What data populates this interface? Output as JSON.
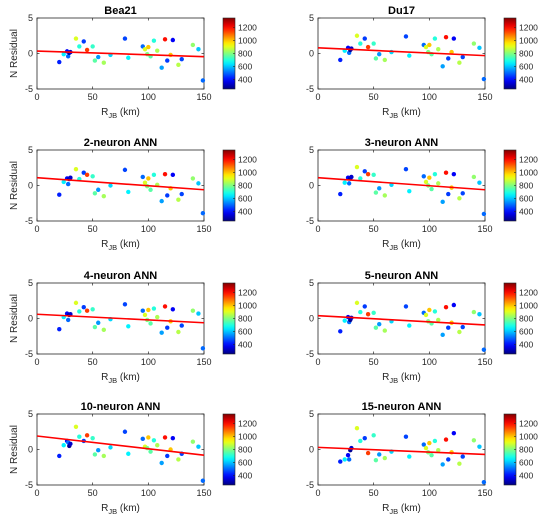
{
  "shared": {
    "xlim": [
      0,
      150
    ],
    "ylim": [
      -5,
      5
    ],
    "xticks": [
      0,
      50,
      100,
      150
    ],
    "yticks": [
      -5,
      0,
      5
    ],
    "xlabel_main": "R",
    "xlabel_sub": "JB",
    "xlabel_unit": "(km)",
    "ylabel": "N Residual",
    "colorbar_ticks": [
      400,
      600,
      800,
      1000,
      1200
    ],
    "colorbar_range": [
      250,
      1350
    ],
    "colormap": "jet",
    "trend_color": "#ff0000",
    "x": [
      20,
      24,
      27,
      28,
      29,
      30,
      35,
      38,
      42,
      45,
      50,
      52,
      55,
      60,
      66,
      79,
      82,
      95,
      97,
      99,
      100,
      102,
      105,
      108,
      112,
      115,
      117,
      120,
      122,
      127,
      130,
      140,
      145,
      149
    ],
    "vs30": [
      420,
      650,
      380,
      500,
      270,
      330,
      900,
      700,
      450,
      1150,
      720,
      760,
      550,
      840,
      620,
      460,
      650,
      500,
      900,
      800,
      1000,
      760,
      700,
      850,
      560,
      1200,
      450,
      1000,
      380,
      860,
      460,
      820,
      600,
      500
    ]
  },
  "chart_data": [
    {
      "type": "scatter",
      "title": "Bea21",
      "trend": [
        0.35,
        -0.45
      ],
      "y": [
        -1.2,
        -0.1,
        0.3,
        -0.4,
        0.1,
        0.2,
        2.1,
        1.0,
        1.7,
        0.5,
        1.0,
        -1.0,
        -0.5,
        -1.3,
        -0.2,
        2.1,
        -0.6,
        1.0,
        0.6,
        -0.1,
        0.9,
        -0.4,
        1.8,
        0.4,
        -2.0,
        2.0,
        -1.0,
        -0.2,
        1.9,
        -1.6,
        -0.8,
        1.2,
        0.6,
        -3.8
      ]
    },
    {
      "type": "scatter",
      "title": "Du17",
      "trend": [
        0.8,
        -0.3
      ],
      "y": [
        -0.9,
        0.4,
        0.8,
        0.1,
        0.5,
        0.7,
        2.5,
        1.4,
        2.1,
        0.9,
        1.4,
        -0.7,
        -0.1,
        -0.9,
        0.2,
        2.4,
        -0.3,
        1.2,
        0.9,
        0.2,
        1.2,
        -0.1,
        2.1,
        0.6,
        -1.8,
        2.3,
        -0.7,
        0.2,
        2.1,
        -1.3,
        -0.5,
        1.4,
        0.8,
        -3.6
      ]
    },
    {
      "type": "scatter",
      "title": "2-neuron ANN",
      "trend": [
        1.1,
        -0.6
      ],
      "y": [
        -1.3,
        0.5,
        1.0,
        0.2,
        0.9,
        1.1,
        2.3,
        0.9,
        1.8,
        1.5,
        1.3,
        -1.1,
        -0.6,
        -1.5,
        0.0,
        2.2,
        -0.9,
        1.2,
        0.4,
        -0.1,
        1.0,
        -0.6,
        1.5,
        0.1,
        -2.2,
        1.6,
        -1.4,
        -0.4,
        1.5,
        -2.0,
        -1.2,
        1.0,
        0.3,
        -3.9
      ]
    },
    {
      "type": "scatter",
      "title": "3-neuron ANN",
      "trend": [
        1.1,
        -0.6
      ],
      "y": [
        -1.2,
        0.4,
        1.1,
        0.3,
        1.0,
        1.2,
        2.6,
        1.0,
        2.0,
        1.6,
        1.5,
        -1.0,
        -0.4,
        -1.4,
        0.1,
        2.3,
        -0.8,
        1.3,
        0.5,
        0.0,
        1.1,
        -0.5,
        1.6,
        0.3,
        -2.3,
        1.8,
        -1.2,
        -0.3,
        1.6,
        -1.8,
        -1.1,
        1.2,
        0.4,
        -4.0
      ]
    },
    {
      "type": "scatter",
      "title": "4-neuron ANN",
      "trend": [
        0.6,
        -0.6
      ],
      "y": [
        -1.5,
        0.2,
        0.7,
        -0.2,
        0.5,
        0.6,
        2.2,
        1.0,
        1.6,
        1.1,
        1.3,
        -1.2,
        -0.6,
        -1.6,
        -0.1,
        2.0,
        -1.1,
        1.1,
        0.5,
        -0.2,
        1.2,
        -0.7,
        1.4,
        0.2,
        -2.0,
        1.7,
        -1.3,
        -0.4,
        1.3,
        -1.9,
        -1.0,
        1.1,
        0.7,
        -4.2
      ]
    },
    {
      "type": "scatter",
      "title": "5-neuron ANN",
      "trend": [
        0.4,
        -0.9
      ],
      "y": [
        -1.8,
        -0.3,
        0.2,
        -0.5,
        -0.2,
        0.1,
        2.2,
        0.9,
        1.7,
        0.6,
        0.8,
        -1.3,
        -0.8,
        -1.7,
        -0.4,
        1.7,
        -1.0,
        0.8,
        0.5,
        -0.4,
        1.2,
        -0.7,
        1.0,
        -0.2,
        -2.3,
        1.6,
        -1.3,
        -0.6,
        1.9,
        -1.9,
        -1.2,
        0.9,
        0.6,
        -4.4
      ]
    },
    {
      "type": "scatter",
      "title": "10-neuron ANN",
      "trend": [
        1.9,
        -0.8
      ],
      "y": [
        -0.9,
        0.6,
        1.2,
        1.0,
        0.5,
        0.8,
        3.2,
        1.8,
        1.2,
        2.0,
        1.6,
        -0.7,
        -0.1,
        -0.9,
        0.3,
        2.5,
        -0.6,
        1.5,
        0.4,
        0.2,
        1.7,
        -0.3,
        1.3,
        0.6,
        -1.9,
        1.7,
        -0.9,
        0.0,
        1.6,
        -1.4,
        -0.6,
        1.1,
        0.4,
        -4.4
      ]
    },
    {
      "type": "scatter",
      "title": "15-neuron ANN",
      "trend": [
        0.3,
        -0.7
      ],
      "y": [
        -1.7,
        -1.4,
        -0.8,
        -1.4,
        -0.1,
        0.2,
        3.0,
        1.2,
        1.6,
        -0.5,
        2.0,
        -1.5,
        -0.7,
        -1.2,
        -0.3,
        1.8,
        -1.0,
        0.7,
        0.2,
        -0.4,
        0.9,
        -0.8,
        1.2,
        -0.1,
        -2.1,
        1.4,
        -1.4,
        -0.4,
        2.3,
        -2.0,
        -1.0,
        1.3,
        0.4,
        -4.6
      ]
    }
  ]
}
